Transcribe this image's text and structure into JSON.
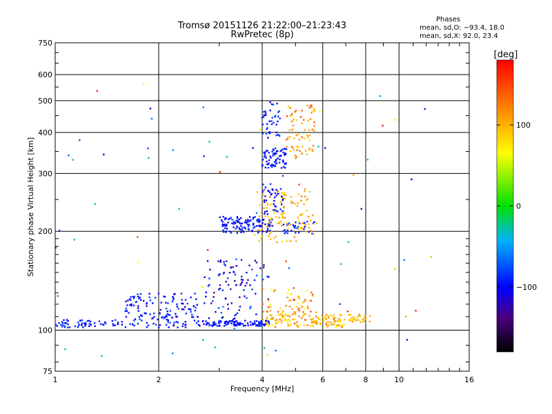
{
  "chart_data": {
    "type": "scatter",
    "title": "Tromsø 20151126 21:22:00–21:23:43",
    "subtitle": "RwPretec (8p)",
    "xlabel": "Frequency [MHz]",
    "ylabel": "Stationary phase Virtual Height [km]",
    "x_scale": "log2",
    "y_scale": "log",
    "xlim": [
      1,
      16
    ],
    "ylim": [
      75,
      750
    ],
    "x_ticks": [
      1,
      2,
      4,
      6,
      8,
      10,
      16
    ],
    "y_ticks": [
      75,
      100,
      200,
      300,
      400,
      500,
      600,
      750
    ],
    "grid": true,
    "phase_info": {
      "title": "Phases",
      "line_o": "mean, sd,O: −93.4, 18.0",
      "line_x": "mean, sd,X:  92.0, 23.4"
    },
    "colorbar": {
      "label": "[deg]",
      "ticks": [
        "100",
        "0",
        "−100"
      ],
      "tick_values": [
        100,
        0,
        -100
      ],
      "range": [
        -180,
        180
      ]
    },
    "clusters": [
      {
        "series": "O",
        "freq": [
          1.0,
          1.6
        ],
        "height": [
          102,
          108
        ],
        "phase": [
          -110,
          -80
        ],
        "count": 60
      },
      {
        "series": "O",
        "freq": [
          1.6,
          2.6
        ],
        "height": [
          102,
          130
        ],
        "phase": [
          -115,
          -75
        ],
        "count": 150
      },
      {
        "series": "O",
        "freq": [
          2.6,
          4.2
        ],
        "height": [
          103,
          107
        ],
        "phase": [
          -110,
          -85
        ],
        "count": 110
      },
      {
        "series": "O",
        "freq": [
          2.7,
          4.2
        ],
        "height": [
          108,
          165
        ],
        "phase": [
          -140,
          -70
        ],
        "count": 95
      },
      {
        "series": "O",
        "freq": [
          3.0,
          4.3
        ],
        "height": [
          198,
          222
        ],
        "phase": [
          -115,
          -80
        ],
        "count": 120
      },
      {
        "series": "O",
        "freq": [
          4.0,
          4.6
        ],
        "height": [
          225,
          280
        ],
        "phase": [
          -120,
          -80
        ],
        "count": 45
      },
      {
        "series": "O",
        "freq": [
          4.0,
          4.7
        ],
        "height": [
          310,
          360
        ],
        "phase": [
          -115,
          -80
        ],
        "count": 75
      },
      {
        "series": "O",
        "freq": [
          4.0,
          4.5
        ],
        "height": [
          380,
          500
        ],
        "phase": [
          -110,
          -70
        ],
        "count": 40
      },
      {
        "series": "O",
        "freq": [
          4.6,
          5.7
        ],
        "height": [
          195,
          215
        ],
        "phase": [
          -110,
          -70
        ],
        "count": 30
      },
      {
        "series": "X",
        "freq": [
          4.0,
          7.0
        ],
        "height": [
          102,
          112
        ],
        "phase": [
          70,
          130
        ],
        "count": 140
      },
      {
        "series": "X",
        "freq": [
          7.0,
          8.3
        ],
        "height": [
          105,
          112
        ],
        "phase": [
          80,
          110
        ],
        "count": 30
      },
      {
        "series": "X",
        "freq": [
          4.0,
          5.8
        ],
        "height": [
          112,
          135
        ],
        "phase": [
          60,
          150
        ],
        "count": 60
      },
      {
        "series": "X",
        "freq": [
          3.8,
          5.8
        ],
        "height": [
          185,
          270
        ],
        "phase": [
          80,
          120
        ],
        "count": 110
      },
      {
        "series": "X",
        "freq": [
          4.7,
          5.7
        ],
        "height": [
          330,
          490
        ],
        "phase": [
          80,
          150
        ],
        "count": 70
      },
      {
        "series": "O",
        "freq": [
          1.0,
          12.5
        ],
        "height": [
          80,
          650
        ],
        "phase": [
          -130,
          0
        ],
        "count": 45
      },
      {
        "series": "X",
        "freq": [
          1.2,
          13.0
        ],
        "height": [
          80,
          620
        ],
        "phase": [
          60,
          170
        ],
        "count": 20
      }
    ]
  }
}
